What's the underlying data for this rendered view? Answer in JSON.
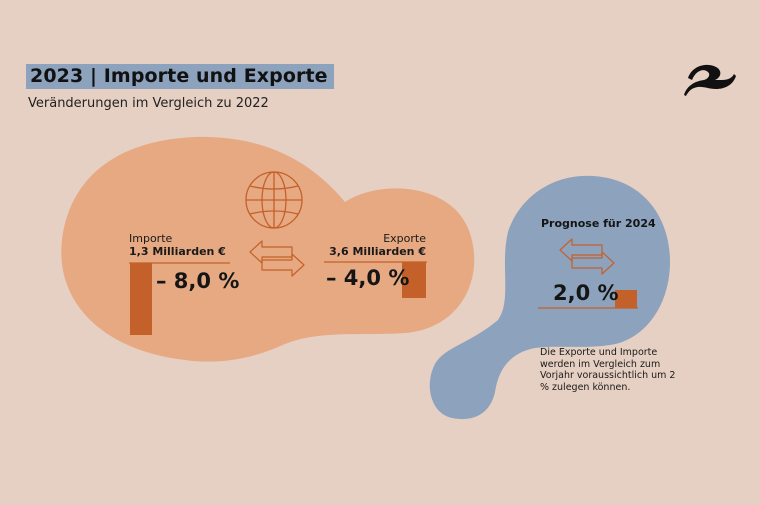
{
  "header": {
    "title": "2023 | Importe und Exporte",
    "subtitle": "Veränderungen im Vergleich zu 2022"
  },
  "logo": {
    "icon": "wave-logo-icon"
  },
  "imports": {
    "label": "Importe",
    "amount": "1,3 Milliarden €",
    "change_label": "– 8,0 %"
  },
  "exports": {
    "label": "Exporte",
    "amount": "3,6 Milliarden €",
    "change_label": "– 4,0 %"
  },
  "forecast": {
    "title": "Prognose für 2024",
    "value_label": "2,0 %",
    "note": "Die Exporte und Importe werden im Vergleich zum Vorjahr voraussichtlich um 2 % zulegen können."
  },
  "icons": {
    "globe": "globe-icon",
    "exchange": "exchange-arrows-icon"
  },
  "colors": {
    "background": "#e6cfc3",
    "blob_orange": "#e6a982",
    "blob_blue": "#8da2bd",
    "bar": "#c4602a",
    "line": "#c4602a",
    "title_highlight": "#8da2bd"
  },
  "chart_data": {
    "type": "bar",
    "categories": [
      "Importe",
      "Exporte",
      "Prognose für 2024"
    ],
    "values": [
      -8.0,
      -4.0,
      2.0
    ],
    "unit": "%",
    "title": "2023 | Importe und Exporte",
    "subtitle": "Veränderungen im Vergleich zu 2022"
  }
}
